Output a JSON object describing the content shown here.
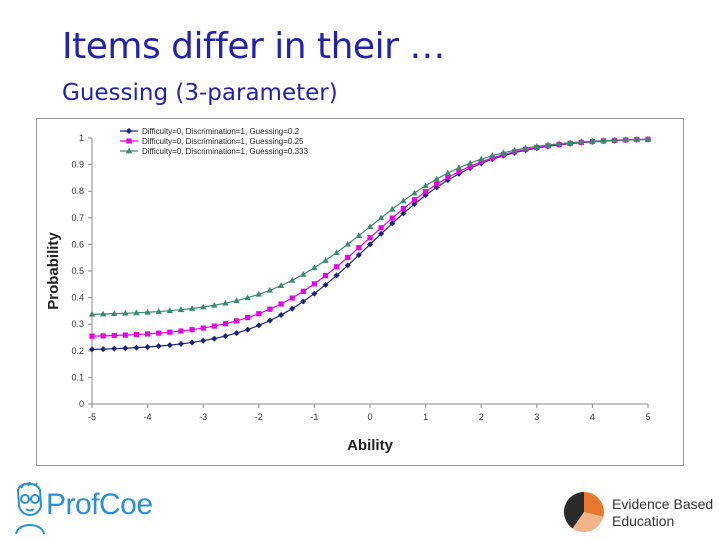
{
  "slide": {
    "title": "Items differ in their …",
    "subtitle": "Guessing (3-parameter)"
  },
  "logos": {
    "left_name": "ProfCoe",
    "right_line1": "Evidence Based",
    "right_line2": "Education"
  },
  "chart_data": {
    "type": "line",
    "title": "",
    "xlabel": "Ability",
    "ylabel": "Probability",
    "xlim": [
      -5,
      5
    ],
    "ylim": [
      0,
      1
    ],
    "x_ticks": [
      "-5",
      "-4",
      "-3",
      "-2",
      "-1",
      "0",
      "1",
      "2",
      "3",
      "4",
      "5"
    ],
    "y_ticks": [
      "0",
      "0.1",
      "0.2",
      "0.3",
      "0.4",
      "0.5",
      "0.6",
      "0.7",
      "0.8",
      "0.9",
      "1"
    ],
    "legend_position": "top-left",
    "series": [
      {
        "name": "Difficulty=0, Discrimination=1, Guessing=0.2",
        "color": "#1a237e",
        "marker": "diamond",
        "difficulty": 0,
        "discrimination": 1,
        "guessing": 0.2
      },
      {
        "name": "Difficulty=0, Discrimination=1, Guessing=0.25",
        "color": "#e600e6",
        "marker": "square",
        "difficulty": 0,
        "discrimination": 1,
        "guessing": 0.25
      },
      {
        "name": "Difficulty=0, Discrimination=1, Guessing=0.333",
        "color": "#3a8a6e",
        "marker": "triangle",
        "difficulty": 0,
        "discrimination": 1,
        "guessing": 0.333
      }
    ],
    "x_values": [
      -5.0,
      -4.8,
      -4.6,
      -4.4,
      -4.2,
      -4.0,
      -3.8,
      -3.6,
      -3.4,
      -3.2,
      -3.0,
      -2.8,
      -2.6,
      -2.4,
      -2.2,
      -2.0,
      -1.8,
      -1.6,
      -1.4,
      -1.2,
      -1.0,
      -0.8,
      -0.6,
      -0.4,
      -0.2,
      0.0,
      0.2,
      0.4,
      0.6,
      0.8,
      1.0,
      1.2,
      1.4,
      1.6,
      1.8,
      2.0,
      2.2,
      2.4,
      2.6,
      2.8,
      3.0,
      3.2,
      3.4,
      3.6,
      3.8,
      4.0,
      4.2,
      4.4,
      4.6,
      4.8,
      5.0
    ]
  }
}
